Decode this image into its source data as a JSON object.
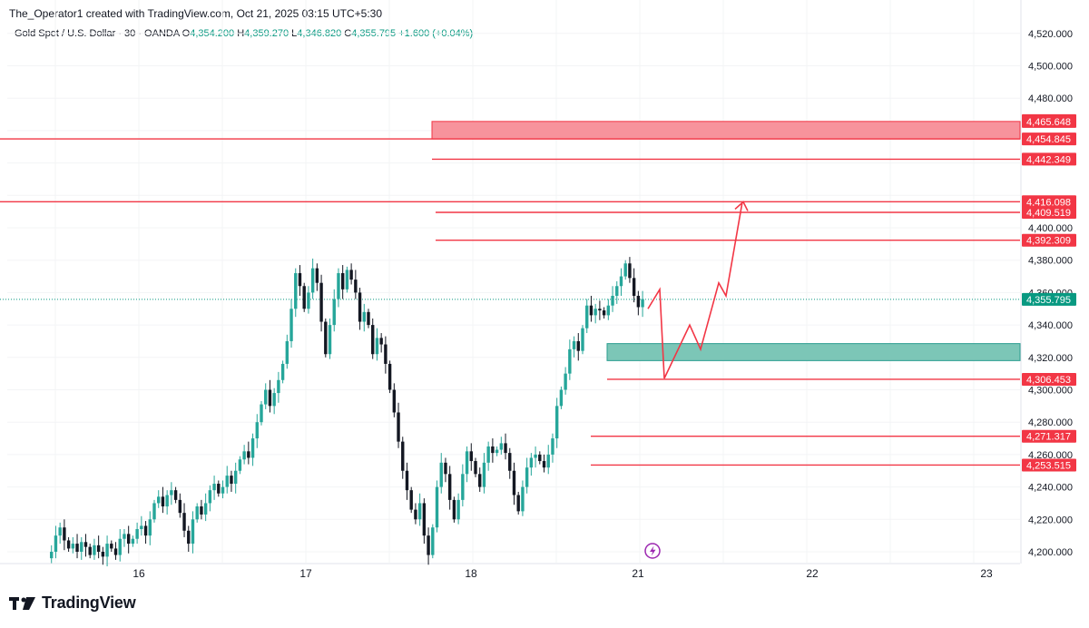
{
  "header": {
    "credit": "The_Operator1 created with TradingView.com, Oct 21, 2025 03:15 UTC+5:30",
    "symbol": "Gold Spot / U.S. Dollar · 30 · OANDA",
    "ohlc": {
      "o_label": "O",
      "o": "4,354.200",
      "h_label": "H",
      "h": "4,359.270",
      "l_label": "L",
      "l": "4,346.820",
      "c_label": "C",
      "c": "4,355.795",
      "change": "+1.600 (+0.04%)"
    }
  },
  "footer": {
    "brand": "TradingView"
  },
  "colors": {
    "up": "#26a69a",
    "down": "#131722",
    "level": "#f23645",
    "supply_zone": "#f7939c",
    "demand_zone": "#7cc6b7",
    "price_tag": "#089981"
  },
  "chart_data": {
    "type": "candlestick",
    "title": "Gold Spot / U.S. Dollar · 30 · OANDA",
    "x_ticks": [
      "16",
      "17",
      "18",
      "21",
      "22",
      "23"
    ],
    "y_ticks": [
      "4,520.000",
      "4,500.000",
      "4,480.000",
      "4,400.000",
      "4,380.000",
      "4,360.000",
      "4,340.000",
      "4,320.000",
      "4,300.000",
      "4,280.000",
      "4,260.000",
      "4,240.000",
      "4,220.000",
      "4,200.000"
    ],
    "ylim": [
      4192,
      4524
    ],
    "current_price": {
      "value": 4355.795,
      "label": "4,355.795"
    },
    "horizontal_levels": [
      {
        "value": 4466.177,
        "label": "4,466.177",
        "span": "zone"
      },
      {
        "value": 4465.648,
        "label": "4,465.648",
        "span": "zone"
      },
      {
        "value": 4454.845,
        "label": "4,454.845",
        "span": "full"
      },
      {
        "value": 4442.349,
        "label": "4,442.349",
        "span": "partial"
      },
      {
        "value": 4416.098,
        "label": "4,416.098",
        "span": "full"
      },
      {
        "value": 4409.519,
        "label": "4,409.519",
        "span": "partial"
      },
      {
        "value": 4392.309,
        "label": "4,392.309",
        "span": "partial"
      },
      {
        "value": 4306.453,
        "label": "4,306.453",
        "span": "partial"
      },
      {
        "value": 4271.317,
        "label": "4,271.317",
        "span": "partial"
      },
      {
        "value": 4253.515,
        "label": "4,253.515",
        "span": "partial"
      }
    ],
    "zones": [
      {
        "kind": "supply",
        "from": 4454.845,
        "to": 4465.648
      },
      {
        "kind": "demand",
        "from": 4318.0,
        "to": 4328.5
      }
    ],
    "projection_path": [
      4362.0,
      4307.0,
      4340.0,
      4325.0,
      4366.0,
      4358.0,
      4416.0
    ],
    "price_path": [
      4196,
      4200,
      4210,
      4215,
      4207,
      4202,
      4205,
      4200,
      4206,
      4203,
      4198,
      4204,
      4200,
      4197,
      4205,
      4202,
      4198,
      4208,
      4211,
      4205,
      4208,
      4214,
      4216,
      4210,
      4220,
      4230,
      4234,
      4228,
      4235,
      4238,
      4232,
      4224,
      4213,
      4205,
      4220,
      4228,
      4223,
      4230,
      4238,
      4242,
      4236,
      4240,
      4247,
      4242,
      4250,
      4257,
      4262,
      4258,
      4270,
      4280,
      4291,
      4300,
      4290,
      4298,
      4306,
      4316,
      4330,
      4350,
      4372,
      4364,
      4350,
      4360,
      4375,
      4366,
      4342,
      4322,
      4340,
      4356,
      4372,
      4362,
      4374,
      4368,
      4360,
      4342,
      4348,
      4340,
      4322,
      4332,
      4328,
      4316,
      4300,
      4286,
      4268,
      4250,
      4238,
      4226,
      4220,
      4230,
      4210,
      4198,
      4215,
      4240,
      4255,
      4248,
      4232,
      4220,
      4232,
      4248,
      4262,
      4256,
      4248,
      4240,
      4255,
      4265,
      4261,
      4263,
      4267,
      4261,
      4250,
      4235,
      4225,
      4240,
      4252,
      4258,
      4260,
      4256,
      4252,
      4260,
      4270,
      4290,
      4300,
      4310,
      4325,
      4330,
      4324,
      4338,
      4352,
      4346,
      4350,
      4349,
      4346,
      4352,
      4358,
      4364,
      4370,
      4378,
      4369,
      4358,
      4351,
      4356
    ]
  }
}
